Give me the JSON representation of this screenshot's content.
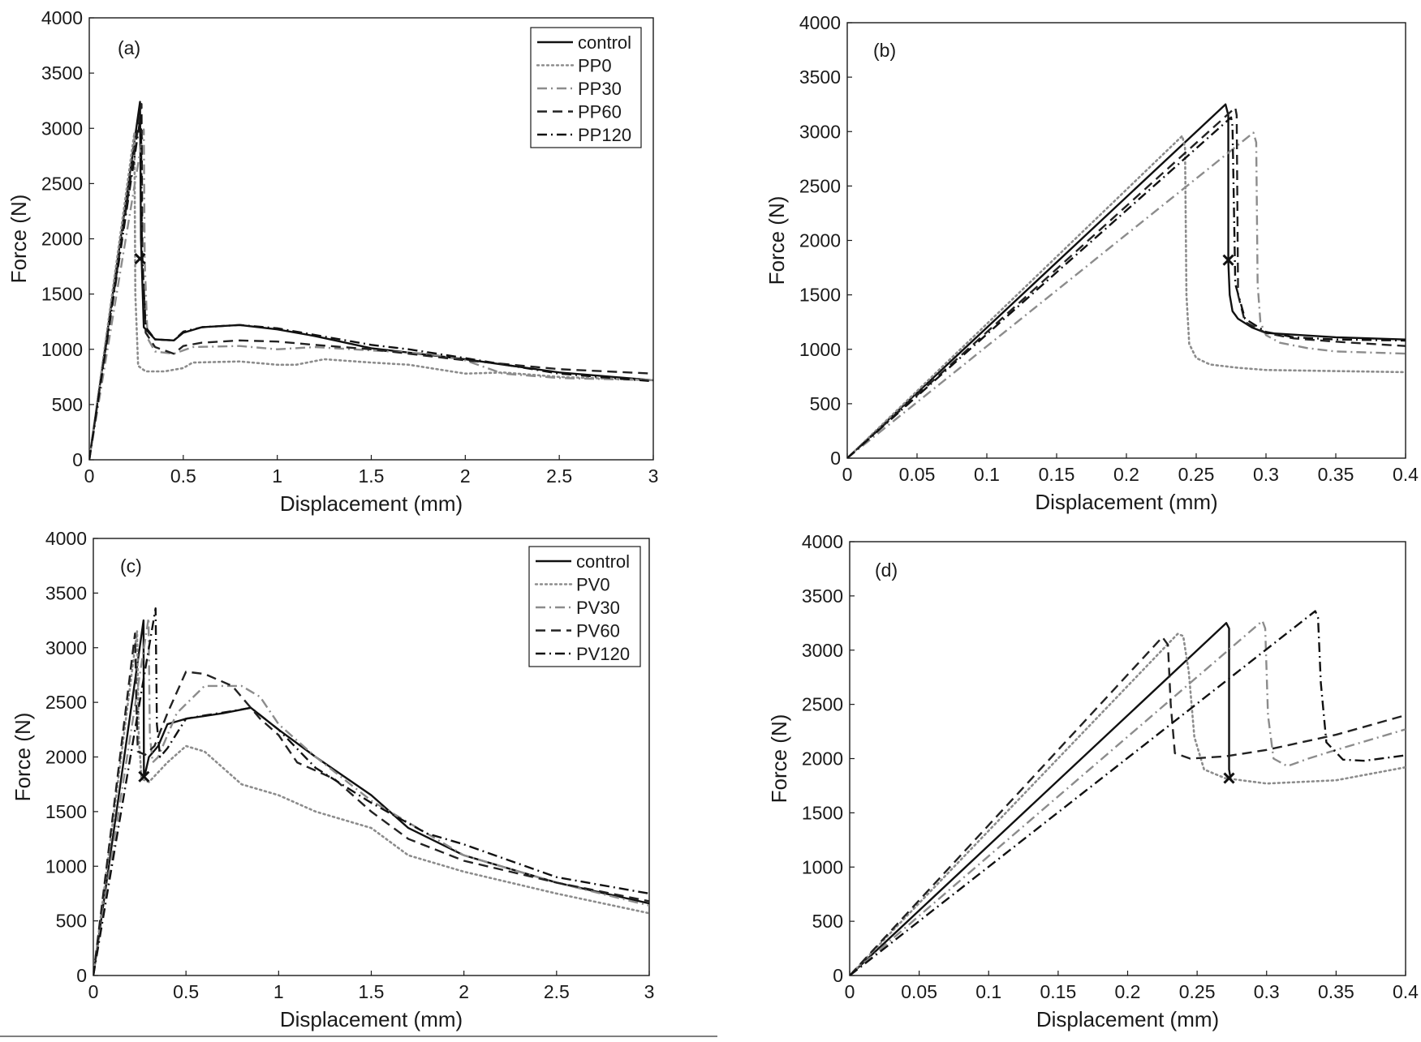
{
  "chart_data": [
    {
      "id": "a",
      "type": "line",
      "panel_label": "(a)",
      "xlabel": "Displacement (mm)",
      "ylabel": "Force (N)",
      "xlim": [
        0,
        3
      ],
      "ylim": [
        0,
        4000
      ],
      "xticks": [
        0,
        0.5,
        1,
        1.5,
        2,
        2.5,
        3
      ],
      "xtick_labels": [
        "0",
        "0.5",
        "1",
        "1.5",
        "2",
        "2.5",
        "3"
      ],
      "yticks": [
        0,
        500,
        1000,
        1500,
        2000,
        2500,
        3000,
        3500,
        4000
      ],
      "ytick_labels": [
        "0",
        "500",
        "1000",
        "1500",
        "2000",
        "2500",
        "3000",
        "3500",
        "4000"
      ],
      "legend": "top-right",
      "marker": {
        "x": 0.27,
        "y": 1820,
        "symbol": "x"
      },
      "series": [
        {
          "name": "control",
          "style": "solid",
          "color": "#111111",
          "x": [
            0,
            0.27,
            0.275,
            0.29,
            0.35,
            0.45,
            0.5,
            0.6,
            0.8,
            1.0,
            1.2,
            1.5,
            2.0,
            2.5,
            3.0
          ],
          "y": [
            0,
            3240,
            2000,
            1200,
            1090,
            1080,
            1150,
            1200,
            1220,
            1180,
            1120,
            1010,
            910,
            790,
            720
          ]
        },
        {
          "name": "PP0",
          "style": "dotted",
          "color": "#8c8c8c",
          "x": [
            0,
            0.24,
            0.245,
            0.26,
            0.3,
            0.4,
            0.5,
            0.55,
            0.8,
            1.0,
            1.1,
            1.25,
            1.5,
            1.7,
            2.0,
            2.2,
            2.5,
            3.0
          ],
          "y": [
            0,
            2960,
            1500,
            850,
            800,
            800,
            830,
            880,
            890,
            860,
            860,
            910,
            880,
            860,
            780,
            790,
            750,
            720
          ]
        },
        {
          "name": "PP30",
          "style": "dashdot",
          "color": "#8c8c8c",
          "x": [
            0,
            0.29,
            0.295,
            0.31,
            0.35,
            0.45,
            0.5,
            0.55,
            0.8,
            1.0,
            1.2,
            1.5,
            1.8,
            2.0,
            2.2,
            2.5,
            3.0
          ],
          "y": [
            0,
            2990,
            1800,
            1100,
            980,
            960,
            990,
            1020,
            1030,
            1000,
            1020,
            990,
            960,
            900,
            780,
            740,
            720
          ]
        },
        {
          "name": "PP60",
          "style": "dashed",
          "color": "#222222",
          "x": [
            0,
            0.278,
            0.283,
            0.3,
            0.35,
            0.45,
            0.5,
            0.6,
            0.8,
            1.0,
            1.2,
            1.5,
            2.0,
            2.5,
            3.0
          ],
          "y": [
            0,
            3220,
            1800,
            1150,
            1020,
            960,
            1030,
            1060,
            1080,
            1070,
            1040,
            1000,
            900,
            820,
            780
          ]
        },
        {
          "name": "PP120",
          "style": "dashdot",
          "color": "#111111",
          "x": [
            0,
            0.275,
            0.28,
            0.3,
            0.35,
            0.45,
            0.5,
            0.6,
            0.8,
            1.0,
            1.2,
            1.5,
            1.7,
            2.0,
            2.5,
            3.0
          ],
          "y": [
            0,
            3130,
            1900,
            1200,
            1090,
            1080,
            1160,
            1200,
            1220,
            1190,
            1130,
            1040,
            1000,
            920,
            780,
            710
          ]
        }
      ]
    },
    {
      "id": "b",
      "type": "line",
      "panel_label": "(b)",
      "xlabel": "Displacement (mm)",
      "ylabel": "Force (N)",
      "xlim": [
        0,
        0.4
      ],
      "ylim": [
        0,
        4000
      ],
      "xticks": [
        0,
        0.05,
        0.1,
        0.15,
        0.2,
        0.25,
        0.3,
        0.35,
        0.4
      ],
      "xtick_labels": [
        "0",
        "0.05",
        "0.1",
        "0.15",
        "0.2",
        "0.25",
        "0.3",
        "0.35",
        "0.4"
      ],
      "yticks": [
        0,
        500,
        1000,
        1500,
        2000,
        2500,
        3000,
        3500,
        4000
      ],
      "ytick_labels": [
        "0",
        "500",
        "1000",
        "1500",
        "2000",
        "2500",
        "3000",
        "3500",
        "4000"
      ],
      "marker": {
        "x": 0.273,
        "y": 1820,
        "symbol": "x"
      },
      "series": [
        {
          "name": "control",
          "style": "solid",
          "color": "#111111",
          "x": [
            0,
            0.271,
            0.273,
            0.273,
            0.274,
            0.276,
            0.28,
            0.29,
            0.3,
            0.35,
            0.4
          ],
          "y": [
            0,
            3250,
            3150,
            1800,
            1500,
            1350,
            1280,
            1200,
            1150,
            1110,
            1090
          ]
        },
        {
          "name": "PP0",
          "style": "dotted",
          "color": "#8c8c8c",
          "x": [
            0,
            0.24,
            0.242,
            0.243,
            0.245,
            0.25,
            0.26,
            0.28,
            0.3,
            0.35,
            0.4
          ],
          "y": [
            0,
            2960,
            2850,
            1500,
            1050,
            920,
            860,
            830,
            810,
            800,
            790
          ]
        },
        {
          "name": "PP30",
          "style": "dashdot",
          "color": "#8c8c8c",
          "x": [
            0,
            0.291,
            0.293,
            0.294,
            0.296,
            0.3,
            0.31,
            0.33,
            0.35,
            0.4
          ],
          "y": [
            0,
            2990,
            2900,
            1600,
            1250,
            1130,
            1060,
            1010,
            980,
            960
          ]
        },
        {
          "name": "PP60",
          "style": "dashed",
          "color": "#222222",
          "x": [
            0,
            0.278,
            0.279,
            0.28,
            0.285,
            0.3,
            0.32,
            0.35,
            0.4
          ],
          "y": [
            0,
            3220,
            3150,
            1500,
            1250,
            1150,
            1100,
            1070,
            1030
          ]
        },
        {
          "name": "PP120",
          "style": "dashdot",
          "color": "#111111",
          "x": [
            0,
            0.275,
            0.276,
            0.278,
            0.285,
            0.3,
            0.32,
            0.35,
            0.4
          ],
          "y": [
            0,
            3130,
            3050,
            1600,
            1280,
            1160,
            1110,
            1090,
            1080
          ]
        }
      ]
    },
    {
      "id": "c",
      "type": "line",
      "panel_label": "(c)",
      "xlabel": "Displacement (mm)",
      "ylabel": "Force (N)",
      "xlim": [
        0,
        3
      ],
      "ylim": [
        0,
        4000
      ],
      "xticks": [
        0,
        0.5,
        1,
        1.5,
        2,
        2.5,
        3
      ],
      "xtick_labels": [
        "0",
        "0.5",
        "1",
        "1.5",
        "2",
        "2.5",
        "3"
      ],
      "yticks": [
        0,
        500,
        1000,
        1500,
        2000,
        2500,
        3000,
        3500,
        4000
      ],
      "ytick_labels": [
        "0",
        "500",
        "1000",
        "1500",
        "2000",
        "2500",
        "3000",
        "3500",
        "4000"
      ],
      "legend": "top-right",
      "marker": {
        "x": 0.273,
        "y": 1820,
        "symbol": "x"
      },
      "series": [
        {
          "name": "control",
          "style": "solid",
          "color": "#111111",
          "x": [
            0,
            0.271,
            0.273,
            0.28,
            0.3,
            0.35,
            0.4,
            0.5,
            0.7,
            0.85,
            1.0,
            1.2,
            1.5,
            1.7,
            2.0,
            2.3,
            2.5,
            3.0
          ],
          "y": [
            0,
            3250,
            1820,
            1850,
            2000,
            2100,
            2300,
            2350,
            2400,
            2450,
            2250,
            2000,
            1650,
            1350,
            1100,
            950,
            850,
            660
          ]
        },
        {
          "name": "PV0",
          "style": "dotted",
          "color": "#8c8c8c",
          "x": [
            0,
            0.236,
            0.245,
            0.26,
            0.3,
            0.4,
            0.5,
            0.6,
            0.8,
            1.0,
            1.2,
            1.5,
            1.7,
            2.0,
            2.5,
            3.0
          ],
          "y": [
            0,
            3150,
            2200,
            1800,
            1770,
            1950,
            2100,
            2050,
            1750,
            1650,
            1500,
            1350,
            1100,
            950,
            750,
            570
          ]
        },
        {
          "name": "PV30",
          "style": "dashdot",
          "color": "#8c8c8c",
          "x": [
            0,
            0.298,
            0.305,
            0.32,
            0.35,
            0.45,
            0.6,
            0.8,
            0.9,
            1.0,
            1.2,
            1.5,
            1.7,
            2.0,
            2.5,
            3.0
          ],
          "y": [
            0,
            3270,
            2200,
            1950,
            2000,
            2400,
            2650,
            2650,
            2550,
            2300,
            2000,
            1600,
            1400,
            1100,
            850,
            640
          ]
        },
        {
          "name": "PV60",
          "style": "dashed",
          "color": "#222222",
          "x": [
            0,
            0.225,
            0.232,
            0.24,
            0.28,
            0.33,
            0.4,
            0.5,
            0.6,
            0.75,
            0.9,
            1.0,
            1.1,
            1.3,
            1.5,
            1.7,
            2.0,
            2.5,
            3.0
          ],
          "y": [
            0,
            3130,
            2500,
            2050,
            2020,
            2100,
            2400,
            2780,
            2760,
            2650,
            2350,
            2200,
            1950,
            1800,
            1500,
            1250,
            1050,
            850,
            680
          ]
        },
        {
          "name": "PV120",
          "style": "dashdot",
          "color": "#111111",
          "x": [
            0,
            0.336,
            0.343,
            0.36,
            0.4,
            0.5,
            0.6,
            0.75,
            0.85,
            1.0,
            1.2,
            1.5,
            1.8,
            2.0,
            2.5,
            3.0
          ],
          "y": [
            0,
            3360,
            2300,
            2000,
            2080,
            2350,
            2380,
            2420,
            2450,
            2250,
            1900,
            1580,
            1300,
            1200,
            900,
            750
          ]
        }
      ]
    },
    {
      "id": "d",
      "type": "line",
      "panel_label": "(d)",
      "xlabel": "Displacement (mm)",
      "ylabel": "Force (N)",
      "xlim": [
        0,
        0.4
      ],
      "ylim": [
        0,
        4000
      ],
      "xticks": [
        0,
        0.05,
        0.1,
        0.15,
        0.2,
        0.25,
        0.3,
        0.35,
        0.4
      ],
      "xtick_labels": [
        "0",
        "0.05",
        "0.1",
        "0.15",
        "0.2",
        "0.25",
        "0.3",
        "0.35",
        "0.4"
      ],
      "yticks": [
        0,
        500,
        1000,
        1500,
        2000,
        2500,
        3000,
        3500,
        4000
      ],
      "ytick_labels": [
        "0",
        "500",
        "1000",
        "1500",
        "2000",
        "2500",
        "3000",
        "3500",
        "4000"
      ],
      "marker": {
        "x": 0.273,
        "y": 1820,
        "symbol": "x"
      },
      "series": [
        {
          "name": "control",
          "style": "solid",
          "color": "#111111",
          "x": [
            0,
            0.271,
            0.273,
            0.273,
            0.274
          ],
          "y": [
            0,
            3250,
            3200,
            1900,
            1820
          ]
        },
        {
          "name": "PV0",
          "style": "dotted",
          "color": "#8c8c8c",
          "x": [
            0,
            0.236,
            0.24,
            0.244,
            0.248,
            0.255,
            0.27,
            0.3,
            0.35,
            0.4
          ],
          "y": [
            0,
            3150,
            3130,
            2800,
            2200,
            1900,
            1820,
            1770,
            1800,
            1920
          ]
        },
        {
          "name": "PV30",
          "style": "dashdot",
          "color": "#8c8c8c",
          "x": [
            0,
            0.297,
            0.299,
            0.301,
            0.305,
            0.315,
            0.33,
            0.35,
            0.4
          ],
          "y": [
            0,
            3270,
            3200,
            2400,
            2000,
            1930,
            2000,
            2080,
            2270
          ]
        },
        {
          "name": "PV60",
          "style": "dashed",
          "color": "#222222",
          "x": [
            0,
            0.225,
            0.229,
            0.231,
            0.234,
            0.245,
            0.27,
            0.3,
            0.35,
            0.4
          ],
          "y": [
            0,
            3120,
            3050,
            2500,
            2050,
            2000,
            2020,
            2080,
            2220,
            2400
          ]
        },
        {
          "name": "PV120",
          "style": "dashdot",
          "color": "#111111",
          "x": [
            0,
            0.335,
            0.337,
            0.339,
            0.343,
            0.355,
            0.37,
            0.4
          ],
          "y": [
            0,
            3360,
            3300,
            2700,
            2150,
            1990,
            1980,
            2030
          ]
        }
      ]
    }
  ]
}
